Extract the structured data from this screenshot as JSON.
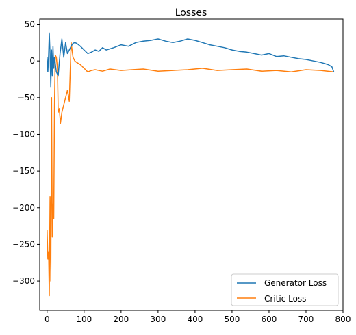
{
  "chart_data": {
    "type": "line",
    "title": "Losses",
    "xlabel": "",
    "ylabel": "",
    "xlim": [
      -20,
      800
    ],
    "ylim": [
      -340,
      57
    ],
    "xticks": [
      0,
      100,
      200,
      300,
      400,
      500,
      600,
      700,
      800
    ],
    "yticks": [
      50,
      0,
      -50,
      -100,
      -150,
      -200,
      -250,
      -300
    ],
    "ytick_labels": [
      "50",
      "0",
      "−50",
      "−100",
      "−150",
      "−200",
      "−250",
      "−300"
    ],
    "grid": false,
    "legend": {
      "location": "lower right",
      "entries": [
        "Generator Loss",
        "Critic Loss"
      ]
    },
    "series": [
      {
        "name": "Generator Loss",
        "color": "#1f77b4",
        "x": [
          0,
          2,
          4,
          6,
          8,
          10,
          12,
          14,
          16,
          18,
          20,
          25,
          30,
          35,
          40,
          45,
          50,
          55,
          60,
          65,
          70,
          75,
          80,
          90,
          100,
          110,
          120,
          130,
          140,
          150,
          160,
          180,
          200,
          220,
          240,
          260,
          280,
          300,
          320,
          340,
          360,
          380,
          400,
          420,
          440,
          460,
          480,
          500,
          520,
          540,
          560,
          580,
          600,
          620,
          640,
          660,
          680,
          700,
          720,
          740,
          760,
          770,
          775
        ],
        "values": [
          5,
          -15,
          8,
          38,
          10,
          -35,
          15,
          -20,
          20,
          -10,
          5,
          -15,
          -20,
          10,
          30,
          5,
          25,
          10,
          15,
          20,
          24,
          25,
          24,
          20,
          15,
          10,
          12,
          15,
          13,
          18,
          15,
          18,
          22,
          20,
          25,
          27,
          28,
          30,
          27,
          25,
          27,
          30,
          28,
          25,
          22,
          20,
          18,
          15,
          13,
          12,
          10,
          8,
          10,
          6,
          7,
          5,
          3,
          2,
          0,
          -2,
          -5,
          -8,
          -15
        ]
      },
      {
        "name": "Critic Loss",
        "color": "#ff7f0e",
        "x": [
          0,
          2,
          4,
          6,
          8,
          10,
          12,
          14,
          16,
          18,
          20,
          22,
          25,
          28,
          30,
          33,
          36,
          40,
          45,
          50,
          55,
          60,
          65,
          70,
          75,
          80,
          90,
          100,
          110,
          120,
          130,
          150,
          170,
          200,
          230,
          260,
          300,
          340,
          380,
          420,
          460,
          500,
          540,
          580,
          620,
          660,
          700,
          740,
          775
        ],
        "values": [
          -230,
          -270,
          -260,
          -320,
          -185,
          -300,
          -50,
          -240,
          -195,
          -215,
          -60,
          8,
          5,
          -10,
          -70,
          -65,
          -85,
          -70,
          -60,
          -50,
          -40,
          -55,
          25,
          5,
          0,
          -2,
          -5,
          -10,
          -15,
          -13,
          -12,
          -14,
          -11,
          -13,
          -12,
          -11,
          -14,
          -13,
          -12,
          -10,
          -13,
          -12,
          -11,
          -14,
          -13,
          -15,
          -12,
          -13,
          -15
        ]
      }
    ]
  }
}
